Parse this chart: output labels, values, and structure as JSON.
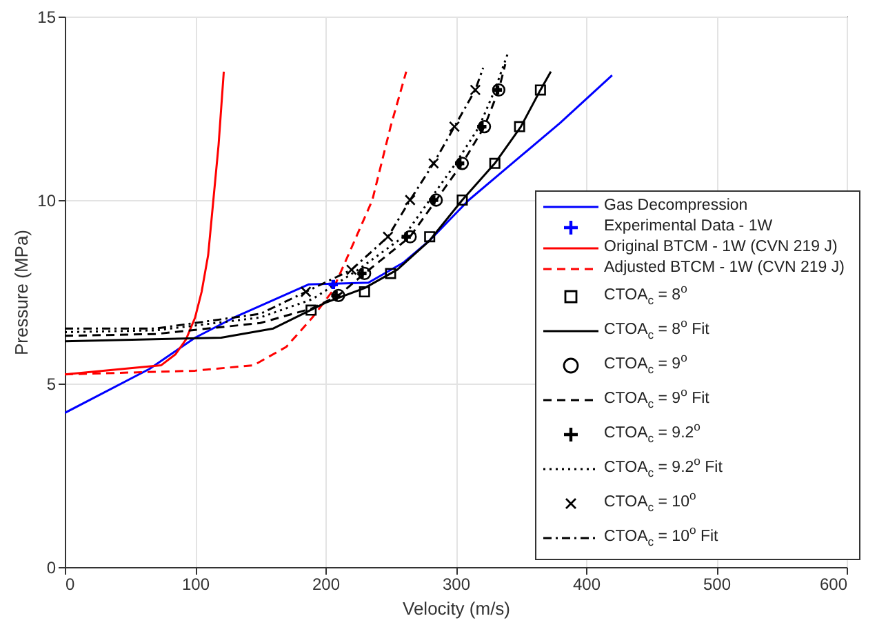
{
  "chart_data": {
    "type": "line",
    "xlabel": "Velocity (m/s)",
    "ylabel": "Pressure (MPa)",
    "xlim": [
      0,
      600
    ],
    "xticks": [
      0,
      100,
      200,
      300,
      400,
      500,
      600
    ],
    "ylim": [
      0,
      15
    ],
    "yticks": [
      0,
      5,
      10,
      15
    ],
    "grid": true,
    "legend": "right",
    "series": [
      {
        "name": "Gas Decompression",
        "color": "#0000ff",
        "line_style": "solid",
        "x": [
          0,
          65,
          100,
          130,
          187,
          233,
          260,
          280,
          310,
          350,
          380,
          420
        ],
        "values": [
          4.2,
          5.4,
          6.25,
          6.8,
          7.7,
          7.75,
          8.3,
          8.9,
          10.0,
          11.2,
          12.1,
          13.4
        ]
      },
      {
        "name": "Experimental Data - 1W",
        "type": "scatter",
        "color": "#0000ff",
        "marker": "cross",
        "x": [
          206
        ],
        "values": [
          7.7
        ]
      },
      {
        "name": "Original BTCM - 1W (CVN 219 J)",
        "color": "#ff0000",
        "line_style": "solid",
        "x": [
          0,
          74,
          85,
          93,
          100,
          105,
          110,
          114,
          118,
          122
        ],
        "values": [
          5.25,
          5.5,
          5.8,
          6.2,
          6.8,
          7.5,
          8.5,
          10,
          11.5,
          13.5
        ]
      },
      {
        "name": "Adjusted BTCM - 1W (CVN 219 J)",
        "color": "#ff0000",
        "line_style": "dashed",
        "x": [
          0,
          100,
          145,
          170,
          190,
          205,
          220,
          236,
          250,
          262
        ],
        "values": [
          5.25,
          5.35,
          5.5,
          6.0,
          6.8,
          7.5,
          8.7,
          10,
          12,
          13.5
        ]
      },
      {
        "name": "CTOA$_{c}$ = 8$^{o}$",
        "type": "scatter",
        "color": "#000000",
        "marker": "square",
        "x": [
          189,
          230,
          250,
          280,
          305,
          330,
          349,
          365
        ],
        "values": [
          7.0,
          7.5,
          8.0,
          9.0,
          10.0,
          11.0,
          12.0,
          13.0
        ]
      },
      {
        "name": "CTOA$_{c}$ = 8$^{o}$ Fit",
        "color": "#000000",
        "line_style": "solid",
        "x": [
          0,
          120,
          160,
          200,
          230,
          255,
          280,
          305,
          330,
          350,
          365,
          373
        ],
        "values": [
          6.15,
          6.25,
          6.5,
          7.2,
          7.6,
          8.1,
          8.9,
          10,
          11,
          12,
          13,
          13.5
        ]
      },
      {
        "name": "CTOA$_{c}$ = 9$^{o}$",
        "type": "scatter",
        "color": "#000000",
        "marker": "circle",
        "x": [
          210,
          230,
          265,
          285,
          305,
          322,
          333
        ],
        "values": [
          7.4,
          8.0,
          9.0,
          10.0,
          11.0,
          12.0,
          13.0
        ]
      },
      {
        "name": "CTOA$_{c}$ = 9$^{o}$ Fit",
        "color": "#000000",
        "line_style": "dashed",
        "x": [
          0,
          70,
          150,
          190,
          210,
          230,
          265,
          285,
          305,
          322,
          333,
          338
        ],
        "values": [
          6.3,
          6.35,
          6.65,
          7.05,
          7.4,
          8.0,
          9,
          10,
          11,
          12,
          13,
          13.7
        ]
      },
      {
        "name": "CTOA$_{c}$ = 9.2$^{o}$",
        "type": "scatter",
        "color": "#000000",
        "marker": "cross",
        "x": [
          208,
          228,
          262,
          283,
          303,
          320,
          332
        ],
        "values": [
          7.4,
          8.0,
          9.0,
          10.0,
          11.0,
          12.0,
          13.0
        ]
      },
      {
        "name": "CTOA$_{c}$ = 9.2$^{o}$ Fit",
        "color": "#000000",
        "line_style": "dotted",
        "x": [
          0,
          70,
          150,
          190,
          225,
          260,
          280,
          300,
          318,
          330,
          340
        ],
        "values": [
          6.4,
          6.45,
          6.8,
          7.3,
          8.1,
          9,
          10,
          11,
          12,
          13,
          14
        ]
      },
      {
        "name": "CTOA$_{c}$ = 10$^{o}$",
        "type": "scatter",
        "color": "#000000",
        "marker": "x",
        "x": [
          185,
          220,
          248,
          265,
          283,
          299,
          315
        ],
        "values": [
          7.5,
          8.1,
          9.0,
          10.0,
          11.0,
          12.0,
          13.0
        ]
      },
      {
        "name": "CTOA$_{c}$ = 10$^{o}$ Fit",
        "color": "#000000",
        "line_style": "dashdot",
        "x": [
          0,
          70,
          150,
          185,
          220,
          248,
          265,
          283,
          299,
          315,
          321
        ],
        "values": [
          6.5,
          6.5,
          6.9,
          7.5,
          8.1,
          9,
          10,
          11,
          12,
          13,
          13.6
        ]
      }
    ]
  }
}
